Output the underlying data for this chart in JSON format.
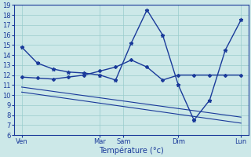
{
  "background_color": "#cce8e8",
  "grid_color": "#99cccc",
  "line_color": "#1a3a9a",
  "xlabel": "Température (°c)",
  "ylim": [
    6,
    19
  ],
  "yticks": [
    6,
    7,
    8,
    9,
    10,
    11,
    12,
    13,
    14,
    15,
    16,
    17,
    18,
    19
  ],
  "xlim": [
    0,
    30
  ],
  "day_labels": [
    "Ven",
    "Mar",
    "Sam",
    "Dim",
    "Lun"
  ],
  "day_positions": [
    1,
    11,
    14,
    21,
    29
  ],
  "line1_x": [
    1,
    3,
    5,
    7,
    9,
    11,
    13,
    15,
    17,
    19,
    21,
    23,
    25,
    27,
    29
  ],
  "line1_y": [
    14.8,
    13.2,
    12.6,
    12.3,
    12.2,
    12.0,
    11.5,
    15.2,
    18.5,
    16.0,
    11.0,
    7.5,
    9.5,
    14.5,
    17.5
  ],
  "line2_x": [
    1,
    3,
    5,
    7,
    9,
    11,
    13,
    15,
    17,
    19,
    21,
    23,
    25,
    27,
    29
  ],
  "line2_y": [
    11.8,
    11.7,
    11.6,
    11.8,
    12.0,
    12.4,
    12.8,
    13.5,
    12.8,
    11.5,
    12.0,
    12.0,
    12.0,
    12.0,
    12.0
  ],
  "line3_x": [
    1,
    29
  ],
  "line3_y": [
    10.8,
    7.8
  ],
  "line4_x": [
    1,
    29
  ],
  "line4_y": [
    10.3,
    7.2
  ],
  "fontsize_tick": 6,
  "fontsize_label": 7
}
